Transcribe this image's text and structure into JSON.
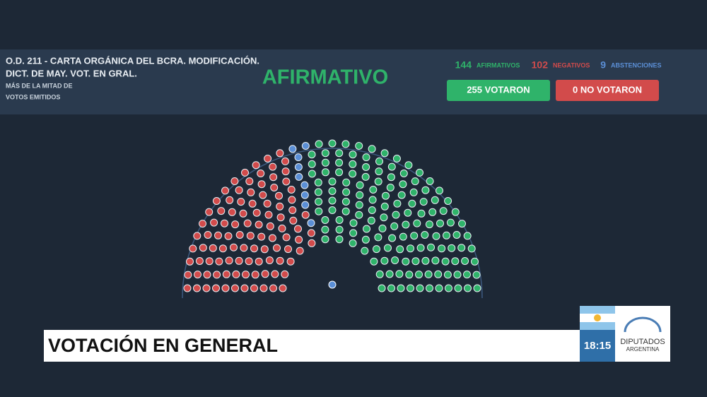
{
  "header": {
    "title_line1": "O.D. 211 - CARTA ORGÁNICA DEL BCRA. MODIFICACIÓN.",
    "title_line2": "DICT. DE MAY. VOT. EN GRAL.",
    "rule_line1": "MÁS DE LA MITAD DE",
    "rule_line2": "VOTOS EMITIDOS",
    "result": "AFIRMATIVO"
  },
  "tally": {
    "affirmative": {
      "count": 144,
      "label": "AFIRMATIVOS",
      "color": "#2fb36a"
    },
    "negative": {
      "count": 102,
      "label": "NEGATIVOS",
      "color": "#d24b4b"
    },
    "abstentions": {
      "count": 9,
      "label": "ABSTENCIONES",
      "color": "#5b8fd6"
    },
    "voted": "255 VOTARON",
    "not_voted": "0 NO VOTARON"
  },
  "banner": "VOTACIÓN EN GENERAL",
  "clock": "18:15",
  "logo": {
    "line1": "DIPUTADOS",
    "line2": "ARGENTINA"
  }
}
